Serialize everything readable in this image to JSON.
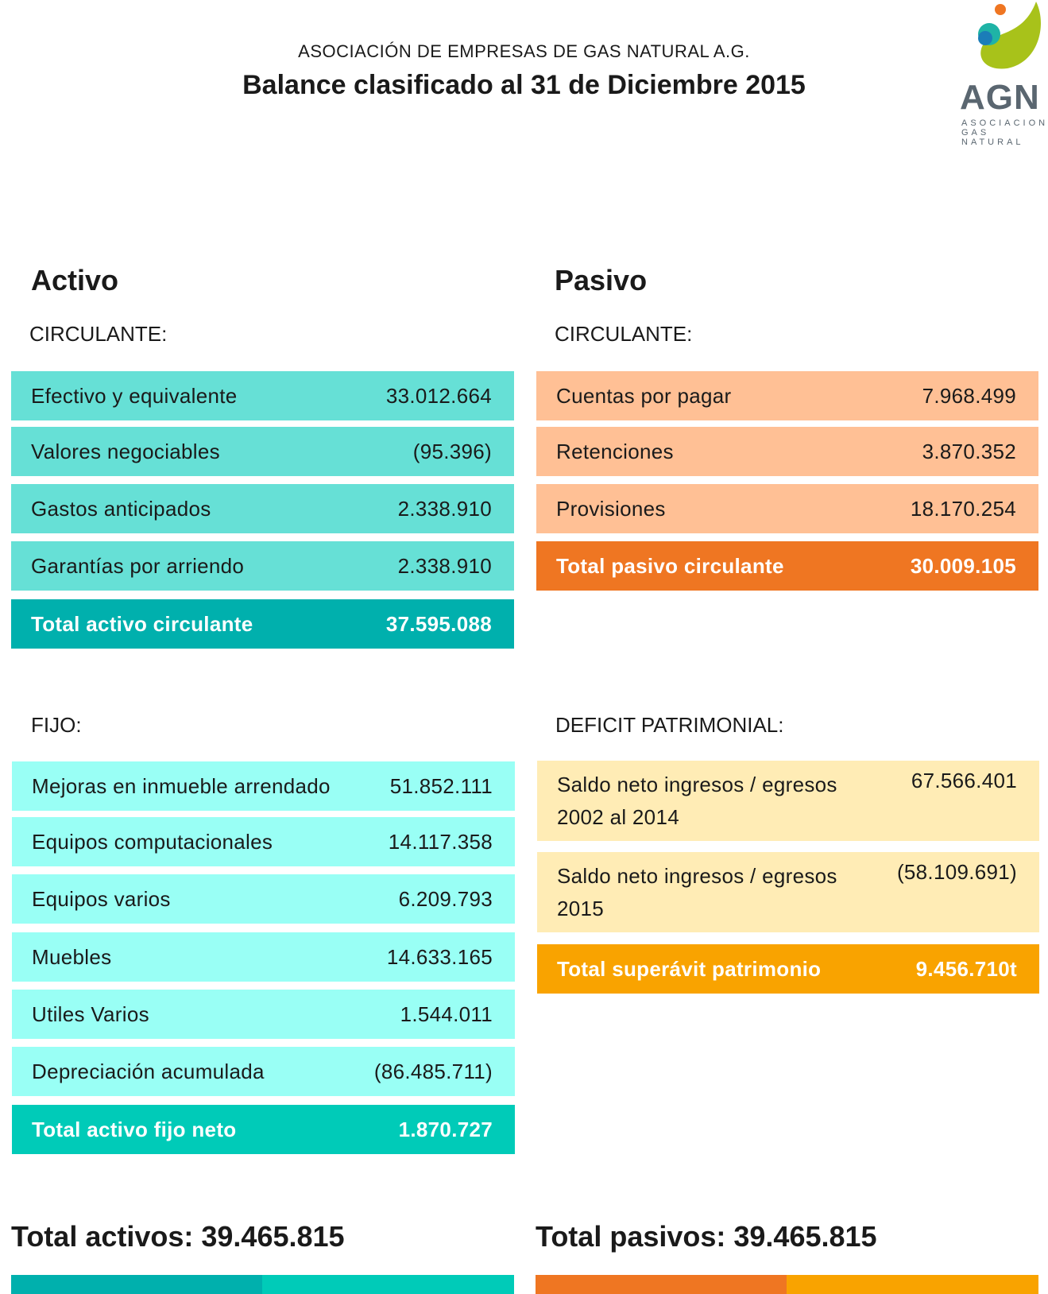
{
  "header": {
    "organization": "ASOCIACIÓN DE EMPRESAS DE GAS NATURAL A.G.",
    "title": "Balance clasificado al 31 de Diciembre 2015"
  },
  "logo": {
    "acronym": "AGN",
    "line1": "ASOCIACION",
    "line2": "GAS NATURAL"
  },
  "activo": {
    "heading": "Activo",
    "circulante": {
      "label": "CIRCULANTE:",
      "rows": [
        {
          "label": "Efectivo y equivalente",
          "value": "33.012.664"
        },
        {
          "label": "Valores negociables",
          "value": "(95.396)"
        },
        {
          "label": "Gastos anticipados",
          "value": "2.338.910"
        },
        {
          "label": "Garantías por arriendo",
          "value": "2.338.910"
        }
      ],
      "total": {
        "label": "Total activo circulante",
        "value": "37.595.088"
      }
    },
    "fijo": {
      "label": "FIJO:",
      "rows": [
        {
          "label": "Mejoras en inmueble arrendado",
          "value": "51.852.111"
        },
        {
          "label": "Equipos computacionales",
          "value": "14.117.358"
        },
        {
          "label": "Equipos varios",
          "value": "6.209.793"
        },
        {
          "label": "Muebles",
          "value": "14.633.165"
        },
        {
          "label": "Utiles Varios",
          "value": "1.544.011"
        },
        {
          "label": "Depreciación acumulada",
          "value": "(86.485.711)"
        }
      ],
      "total": {
        "label": "Total activo fijo neto",
        "value": "1.870.727"
      }
    }
  },
  "pasivo": {
    "heading": "Pasivo",
    "circulante": {
      "label": "CIRCULANTE:",
      "rows": [
        {
          "label": "Cuentas por pagar",
          "value": "7.968.499"
        },
        {
          "label": "Retenciones",
          "value": "3.870.352"
        },
        {
          "label": "Provisiones",
          "value": "18.170.254"
        }
      ],
      "total": {
        "label": "Total pasivo circulante",
        "value": "30.009.105"
      }
    },
    "deficit": {
      "label": "DEFICIT PATRIMONIAL:",
      "rows": [
        {
          "label": "Saldo neto ingresos / egresos 2002 al 2014",
          "value": "67.566.401"
        },
        {
          "label": "Saldo neto ingresos / egresos 2015",
          "value": "(58.109.691)"
        }
      ],
      "total": {
        "label": "Total superávit patrimonio",
        "value": "9.456.710t"
      }
    }
  },
  "totals": {
    "activos": "Total activos: 39.465.815",
    "pasivos": "Total pasivos: 39.465.815"
  }
}
